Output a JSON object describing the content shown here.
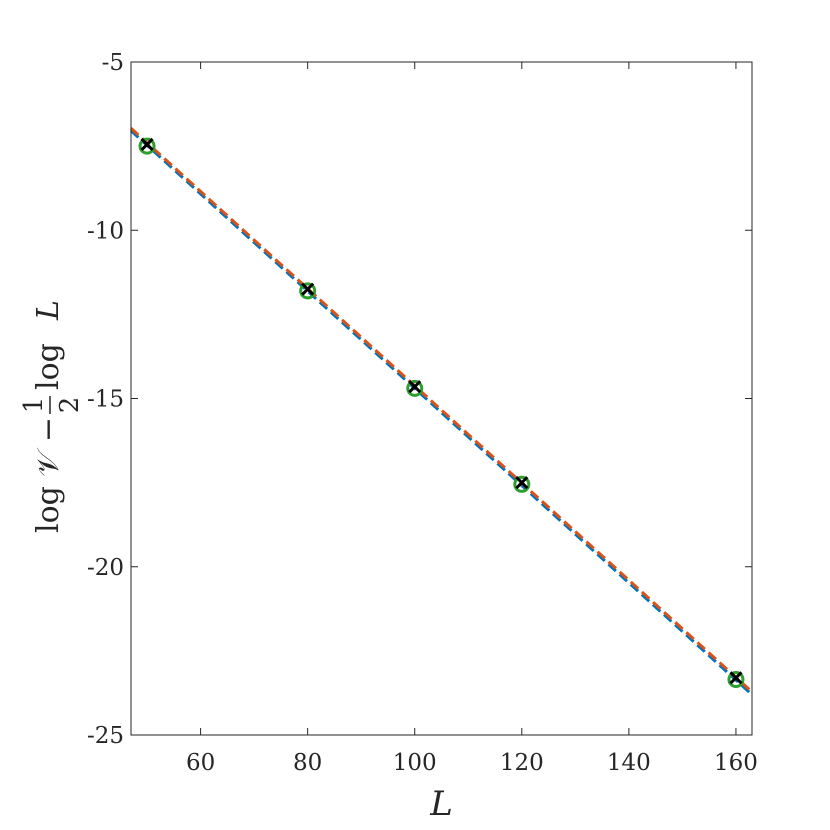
{
  "chart_data": {
    "type": "scatter",
    "title": "",
    "xlabel": "L",
    "ylabel": {
      "log_v": "log 𝒱 −",
      "frac_num": "1",
      "frac_den": "2",
      "log_l": "log",
      "l_var": "L"
    },
    "xlim": [
      47,
      163
    ],
    "ylim": [
      -25,
      -5
    ],
    "xticks": [
      60,
      80,
      100,
      120,
      140,
      160
    ],
    "yticks": [
      -25,
      -20,
      -15,
      -10,
      -5
    ],
    "xtick_labels": [
      "60",
      "80",
      "100",
      "120",
      "140",
      "160"
    ],
    "ytick_labels": [
      "-25",
      "-20",
      "-15",
      "-10",
      "-5"
    ],
    "grid": false,
    "series": [
      {
        "marker": "circle",
        "color": "#2ca02c",
        "points": [
          {
            "x": 50,
            "y": -7.5
          },
          {
            "x": 80,
            "y": -11.8
          },
          {
            "x": 100,
            "y": -14.7
          },
          {
            "x": 120,
            "y": -17.55
          },
          {
            "x": 160,
            "y": -23.35
          }
        ]
      },
      {
        "marker": "x",
        "color": "#000000",
        "points": [
          {
            "x": 50,
            "y": -7.45
          },
          {
            "x": 80,
            "y": -11.75
          },
          {
            "x": 100,
            "y": -14.65
          },
          {
            "x": 120,
            "y": -17.5
          },
          {
            "x": 160,
            "y": -23.3
          }
        ]
      },
      {
        "marker": "dashed-line",
        "color": "#0072bd",
        "points": [
          {
            "x": 47,
            "y": -7.04
          },
          {
            "x": 163,
            "y": -23.8
          }
        ]
      },
      {
        "marker": "dashed-line",
        "color": "#d95319",
        "points": [
          {
            "x": 47,
            "y": -6.97
          },
          {
            "x": 163,
            "y": -23.72
          }
        ]
      }
    ]
  }
}
